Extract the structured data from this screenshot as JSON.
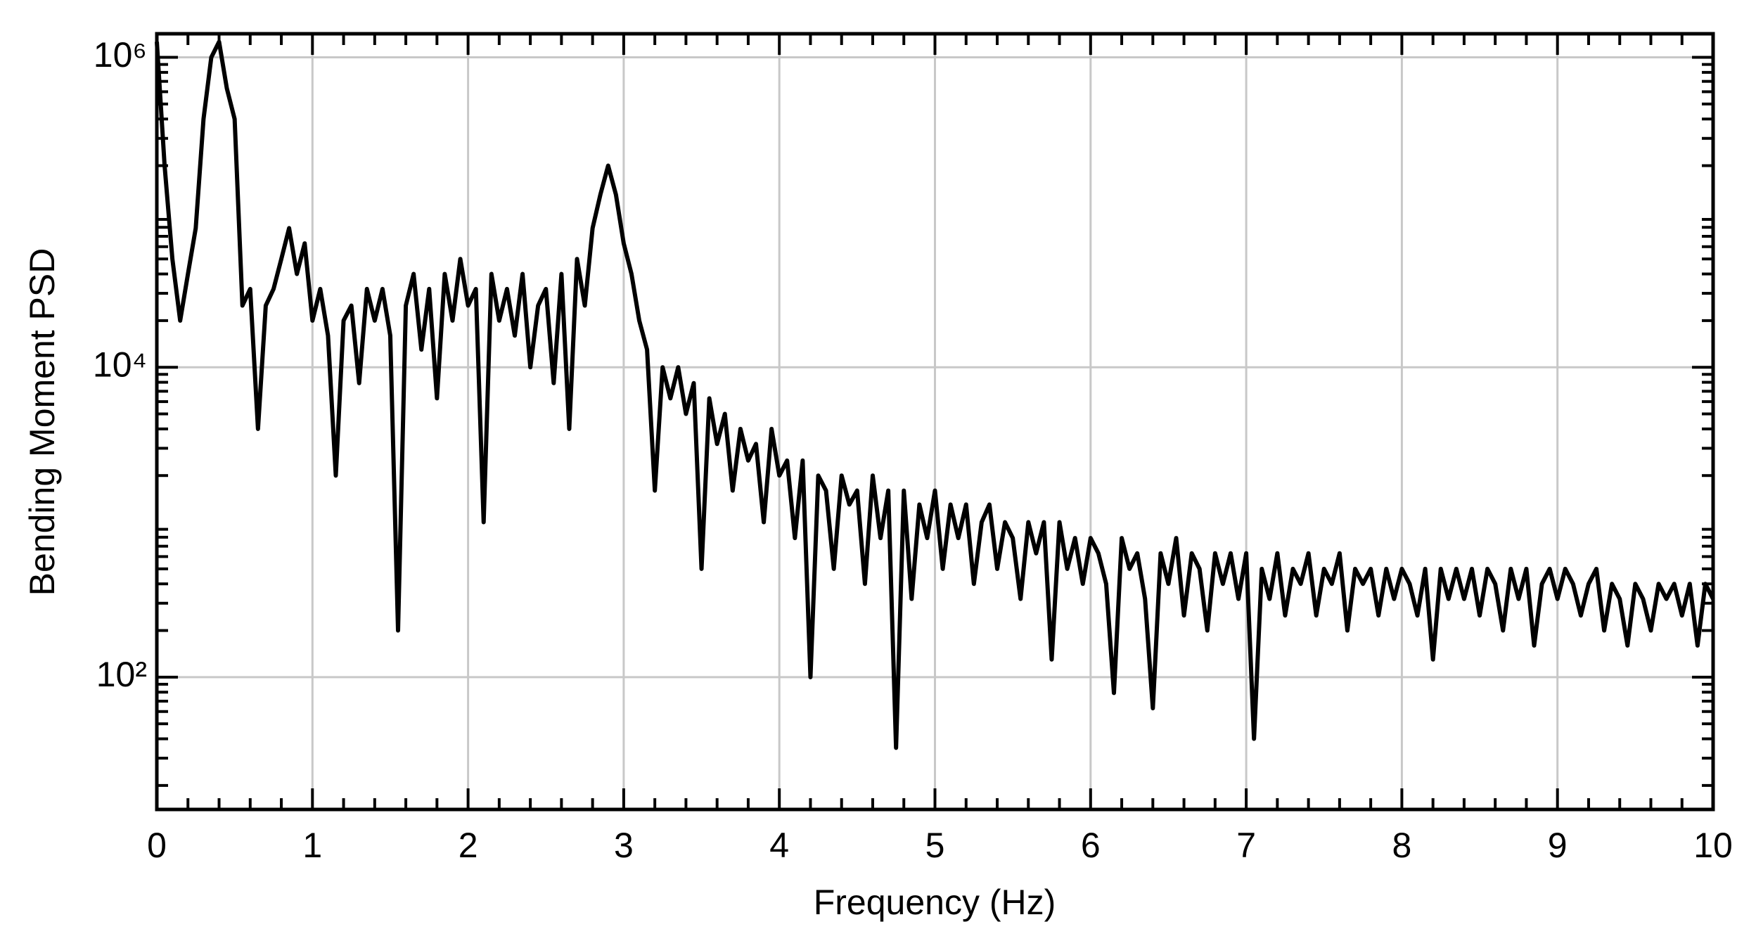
{
  "chart_data": {
    "type": "line",
    "x_label": "Frequency (Hz)",
    "y_label": "Bending Moment PSD",
    "color": "#000000",
    "grid": true,
    "y_scale": "log",
    "xlim": [
      0,
      10
    ],
    "xticks": [
      0,
      1,
      2,
      3,
      4,
      5,
      6,
      7,
      8,
      9,
      10
    ],
    "xminorticks": [
      0.2,
      0.4,
      0.6,
      0.8,
      1.2,
      1.4,
      1.6,
      1.8,
      2.2,
      2.4,
      2.6,
      2.8,
      3.2,
      3.4,
      3.6,
      3.8,
      4.2,
      4.4,
      4.6,
      4.8,
      5.2,
      5.4,
      5.6,
      5.8,
      6.2,
      6.4,
      6.6,
      6.8,
      7.2,
      7.4,
      7.6,
      7.8,
      8.2,
      8.4,
      8.6,
      8.8,
      9.2,
      9.4,
      9.6,
      9.8
    ],
    "ylim": [
      14,
      1420000
    ],
    "yticks": [
      {
        "value": 100,
        "label": "10²"
      },
      {
        "value": 10000,
        "label": "10⁴"
      },
      {
        "value": 1000000,
        "label": "10⁶"
      }
    ],
    "yminorticks": [
      20,
      30,
      40,
      50,
      60,
      70,
      80,
      90,
      200,
      300,
      400,
      500,
      600,
      700,
      800,
      900,
      2000,
      3000,
      4000,
      5000,
      6000,
      7000,
      8000,
      9000,
      20000,
      30000,
      40000,
      50000,
      60000,
      70000,
      80000,
      90000,
      200000,
      300000,
      400000,
      500000,
      600000,
      700000,
      800000,
      900000
    ],
    "x": [
      0,
      0.05,
      0.1,
      0.15,
      0.2,
      0.25,
      0.3,
      0.35,
      0.4,
      0.45,
      0.5,
      0.55,
      0.6,
      0.65,
      0.7,
      0.75,
      0.8,
      0.85,
      0.9,
      0.95,
      1,
      1.05,
      1.1,
      1.15,
      1.2,
      1.25,
      1.3,
      1.35,
      1.4,
      1.45,
      1.5,
      1.55,
      1.6,
      1.65,
      1.7,
      1.75,
      1.8,
      1.85,
      1.9,
      1.95,
      2,
      2.05,
      2.1,
      2.15,
      2.2,
      2.25,
      2.3,
      2.35,
      2.4,
      2.45,
      2.5,
      2.55,
      2.6,
      2.65,
      2.7,
      2.75,
      2.8,
      2.85,
      2.9,
      2.95,
      3,
      3.05,
      3.1,
      3.15,
      3.2,
      3.25,
      3.3,
      3.35,
      3.4,
      3.45,
      3.5,
      3.55,
      3.6,
      3.65,
      3.7,
      3.75,
      3.8,
      3.85,
      3.9,
      3.95,
      4,
      4.05,
      4.1,
      4.15,
      4.2,
      4.25,
      4.3,
      4.35,
      4.4,
      4.45,
      4.5,
      4.55,
      4.6,
      4.65,
      4.7,
      4.75,
      4.8,
      4.85,
      4.9,
      4.95,
      5,
      5.05,
      5.1,
      5.15,
      5.2,
      5.25,
      5.3,
      5.35,
      5.4,
      5.45,
      5.5,
      5.55,
      5.6,
      5.65,
      5.7,
      5.75,
      5.8,
      5.85,
      5.9,
      5.95,
      6,
      6.05,
      6.1,
      6.15,
      6.2,
      6.25,
      6.3,
      6.35,
      6.4,
      6.45,
      6.5,
      6.55,
      6.6,
      6.65,
      6.7,
      6.75,
      6.8,
      6.85,
      6.9,
      6.95,
      7,
      7.05,
      7.1,
      7.15,
      7.2,
      7.25,
      7.3,
      7.35,
      7.4,
      7.45,
      7.5,
      7.55,
      7.6,
      7.65,
      7.7,
      7.75,
      7.8,
      7.85,
      7.9,
      7.95,
      8,
      8.05,
      8.1,
      8.15,
      8.2,
      8.25,
      8.3,
      8.35,
      8.4,
      8.45,
      8.5,
      8.55,
      8.6,
      8.65,
      8.7,
      8.75,
      8.8,
      8.85,
      8.9,
      8.95,
      9,
      9.05,
      9.1,
      9.15,
      9.2,
      9.25,
      9.3,
      9.35,
      9.4,
      9.45,
      9.5,
      9.55,
      9.6,
      9.65,
      9.7,
      9.75,
      9.8,
      9.85,
      9.9,
      9.95,
      10
    ],
    "values": [
      1260000,
      200000,
      50000,
      20000,
      40000,
      79000,
      400000,
      1000000,
      1260000,
      630000,
      400000,
      25000,
      32000,
      4000,
      25000,
      32000,
      50000,
      79000,
      40000,
      63000,
      20000,
      32000,
      16000,
      2000,
      20000,
      25000,
      7900,
      32000,
      20000,
      32000,
      16000,
      200,
      25000,
      40000,
      13000,
      32000,
      6300,
      40000,
      20000,
      50000,
      25000,
      32000,
      1000,
      40000,
      20000,
      32000,
      16000,
      40000,
      10000,
      25000,
      32000,
      7900,
      40000,
      4000,
      50000,
      25000,
      79000,
      130000,
      200000,
      130000,
      63000,
      40000,
      20000,
      13000,
      1600,
      10000,
      6300,
      10000,
      5000,
      7900,
      500,
      6300,
      3200,
      5000,
      1600,
      4000,
      2500,
      3200,
      1000,
      4000,
      2000,
      2500,
      790,
      2500,
      100,
      2000,
      1600,
      500,
      2000,
      1300,
      1600,
      400,
      2000,
      790,
      1600,
      35,
      1600,
      320,
      1300,
      790,
      1600,
      500,
      1300,
      790,
      1300,
      400,
      1000,
      1300,
      500,
      1000,
      790,
      320,
      1000,
      630,
      1000,
      130,
      1000,
      500,
      790,
      400,
      790,
      630,
      400,
      79,
      790,
      500,
      630,
      320,
      63,
      630,
      400,
      790,
      250,
      630,
      500,
      200,
      630,
      400,
      630,
      320,
      630,
      40,
      500,
      320,
      630,
      250,
      500,
      400,
      630,
      250,
      500,
      400,
      630,
      200,
      500,
      400,
      500,
      250,
      500,
      320,
      500,
      400,
      250,
      500,
      130,
      500,
      320,
      500,
      320,
      500,
      250,
      500,
      400,
      200,
      500,
      320,
      500,
      160,
      400,
      500,
      320,
      500,
      400,
      250,
      400,
      500,
      200,
      400,
      320,
      160,
      400,
      320,
      200,
      400,
      320,
      400,
      250,
      400,
      160,
      400,
      320
    ]
  }
}
